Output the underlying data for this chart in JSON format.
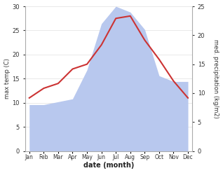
{
  "months": [
    "Jan",
    "Feb",
    "Mar",
    "Apr",
    "May",
    "Jun",
    "Jul",
    "Aug",
    "Sep",
    "Oct",
    "Nov",
    "Dec"
  ],
  "temperature": [
    11,
    13,
    14,
    17,
    18,
    22,
    27.5,
    28,
    23,
    19,
    14.5,
    11
  ],
  "precipitation": [
    8,
    8,
    8.5,
    9,
    14,
    22,
    25,
    24,
    21,
    13,
    12,
    12
  ],
  "temp_color": "#cc3333",
  "precip_color": "#b8c8ee",
  "temp_ylim": [
    0,
    30
  ],
  "precip_ylim": [
    0,
    25
  ],
  "precip_scale": 1.2,
  "xlabel": "date (month)",
  "ylabel_left": "max temp (C)",
  "ylabel_right": "med. precipitation (kg/m2)",
  "bg_color": "#ffffff",
  "fig_color": "#ffffff"
}
